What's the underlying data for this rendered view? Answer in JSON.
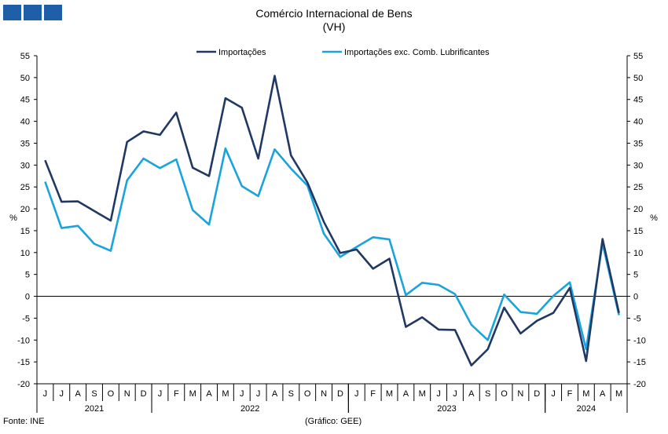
{
  "header": {
    "title": "Comércio Internacional de Bens",
    "subtitle": "(VH)"
  },
  "footer": {
    "source": "Fonte: INE",
    "credit": "(Gráfico: GEE)"
  },
  "chart_data": {
    "type": "line",
    "title": "Comércio Internacional de Bens",
    "subtitle": "(VH)",
    "ylabel_left": "%",
    "ylabel_right": "%",
    "ylim": [
      -20,
      55
    ],
    "yticks": [
      -20,
      -15,
      -10,
      -5,
      0,
      5,
      10,
      15,
      20,
      25,
      30,
      35,
      40,
      45,
      50,
      55
    ],
    "grid": false,
    "legend_position": "top",
    "x_month_labels": [
      "J",
      "J",
      "A",
      "S",
      "O",
      "N",
      "D",
      "J",
      "F",
      "M",
      "A",
      "M",
      "J",
      "J",
      "A",
      "S",
      "O",
      "N",
      "D",
      "J",
      "F",
      "M",
      "A",
      "M",
      "J",
      "J",
      "A",
      "S",
      "O",
      "N",
      "D",
      "J",
      "F",
      "M",
      "A",
      "M"
    ],
    "years": [
      {
        "label": "2021",
        "start": 0,
        "count": 7
      },
      {
        "label": "2022",
        "start": 7,
        "count": 12
      },
      {
        "label": "2023",
        "start": 19,
        "count": 12
      },
      {
        "label": "2024",
        "start": 31,
        "count": 5
      }
    ],
    "series": [
      {
        "name": "Importações",
        "color": "#203864",
        "values": [
          31.1,
          21.6,
          21.7,
          19.5,
          17.3,
          35.3,
          37.7,
          36.9,
          42.0,
          29.4,
          27.5,
          45.3,
          43.1,
          31.5,
          50.4,
          32.2,
          26.0,
          17.0,
          9.9,
          10.7,
          6.3,
          8.6,
          -7.0,
          -4.8,
          -7.6,
          -7.7,
          -15.8,
          -12.1,
          -2.6,
          -8.5,
          -5.6,
          -3.8,
          1.9,
          -14.8,
          13.1,
          -3.8
        ]
      },
      {
        "name": "Importações exc. Comb. Lubrificantes",
        "color": "#1aa3dc",
        "values": [
          26.2,
          15.6,
          16.1,
          12.0,
          10.4,
          26.5,
          31.5,
          29.3,
          31.3,
          19.7,
          16.4,
          33.8,
          25.2,
          22.9,
          33.6,
          29.2,
          25.3,
          14.3,
          9.0,
          11.3,
          13.5,
          13.0,
          0.3,
          3.1,
          2.6,
          0.5,
          -6.5,
          -10.0,
          0.4,
          -3.6,
          -4.0,
          0.1,
          3.2,
          -12.1,
          12.1,
          -4.3
        ]
      }
    ]
  }
}
